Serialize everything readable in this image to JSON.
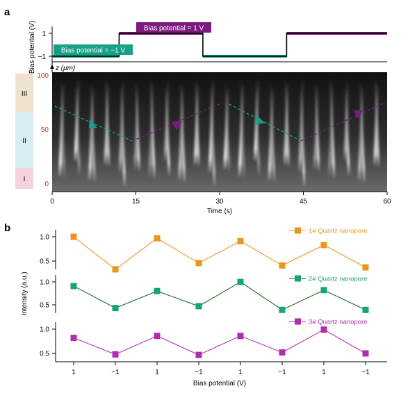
{
  "panel_a": {
    "label": "a",
    "bias_ylabel": "Bias potential (V)",
    "bias_yticks": [
      "1",
      "−1"
    ],
    "bias_neg_label": "Bias potential = −1 V",
    "bias_pos_label": "Bias potential = 1 V",
    "z_label": "z (μm)",
    "z_ticks": [
      "100",
      "50",
      "0"
    ],
    "zones": [
      "III",
      "II",
      "I"
    ],
    "xlabel": "Time (s)",
    "xticks": [
      "0",
      "15",
      "30",
      "45",
      "60"
    ],
    "colors": {
      "negative": "#16a085",
      "positive": "#7b1b7e",
      "zone_III": "#efe3cf",
      "zone_II": "#d8edf1",
      "zone_I": "#f5d3dc",
      "z_tick_text": "#c0392b"
    }
  },
  "panel_b": {
    "label": "b",
    "ylabel": "Intensity (a.u.)",
    "xlabel": "Bias potential (V)"
  },
  "chart_data": [
    {
      "type": "line",
      "title": "",
      "xlabel": "Time (s)",
      "ylabel": "Bias potential (V)",
      "xlim": [
        0,
        60
      ],
      "ylim": [
        -1.3,
        1.3
      ],
      "series": [
        {
          "name": "",
          "x": [
            0,
            12,
            12,
            27,
            27,
            42,
            42,
            60
          ],
          "values": [
            -1,
            -1,
            1,
            1,
            -1,
            -1,
            1,
            1
          ]
        }
      ]
    },
    {
      "type": "line",
      "title": "",
      "xlabel": "Bias potential (V)",
      "ylabel": "Intensity (a.u.)",
      "categories": [
        "1",
        "−1",
        "1",
        "−1",
        "1",
        "−1",
        "1",
        "−1"
      ],
      "series": [
        {
          "name": "1# Quartz nanopore",
          "color": "#e8961e",
          "line_color": "#e8961e",
          "values": [
            1.0,
            0.33,
            0.97,
            0.46,
            0.91,
            0.41,
            0.83,
            0.37
          ],
          "yticks": [
            "1.0",
            "0.5"
          ]
        },
        {
          "name": "2# Quartz nanopore",
          "color": "#18a27a",
          "line_color": "#1e6b2e",
          "values": [
            0.91,
            0.43,
            0.8,
            0.47,
            1.0,
            0.39,
            0.82,
            0.39
          ],
          "yticks": [
            "1.0",
            "0.5"
          ]
        },
        {
          "name": "3# Quartz nanopore",
          "color": "#b02cb0",
          "line_color": "#b02cb0",
          "values": [
            0.82,
            0.48,
            0.86,
            0.47,
            0.86,
            0.52,
            0.99,
            0.5
          ],
          "yticks": [
            "1.0",
            "0.5"
          ]
        }
      ]
    }
  ]
}
